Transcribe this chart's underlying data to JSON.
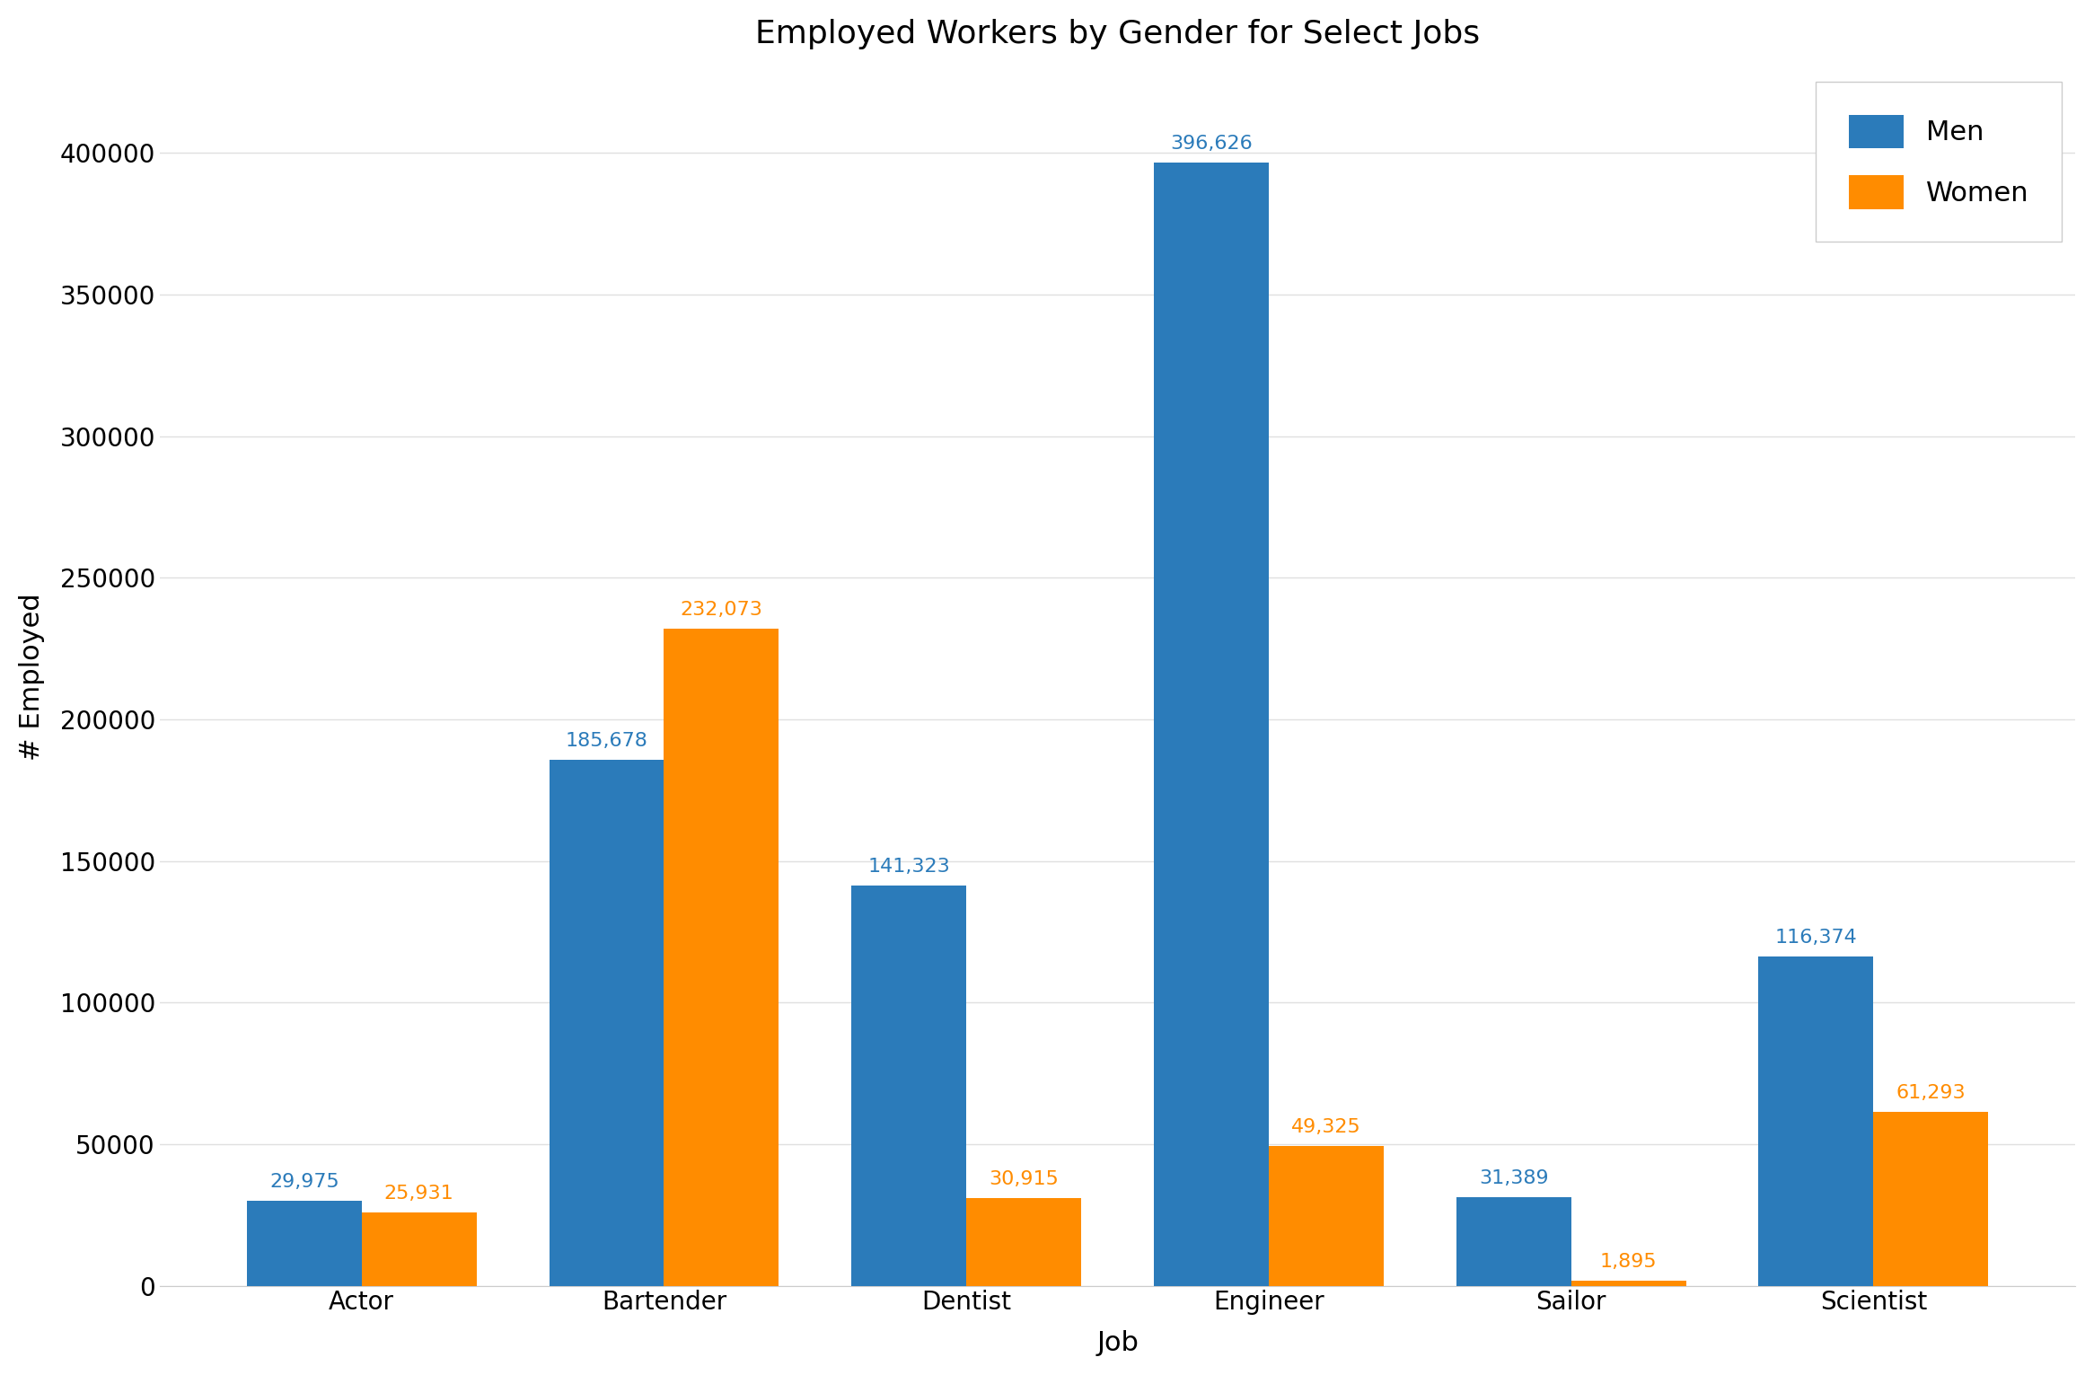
{
  "title": "Employed Workers by Gender for Select Jobs",
  "xlabel": "Job",
  "ylabel": "# Employed",
  "categories": [
    "Actor",
    "Bartender",
    "Dentist",
    "Engineer",
    "Sailor",
    "Scientist"
  ],
  "men_values": [
    29975,
    185678,
    141323,
    396626,
    31389,
    116374
  ],
  "women_values": [
    25931,
    232073,
    30915,
    49325,
    1895,
    61293
  ],
  "men_color": "#2b7bba",
  "women_color": "#ff8c00",
  "ylim": [
    0,
    430000
  ],
  "yticks": [
    0,
    50000,
    100000,
    150000,
    200000,
    250000,
    300000,
    350000,
    400000
  ],
  "legend_labels": [
    "Men",
    "Women"
  ],
  "bar_width": 0.38,
  "title_fontsize": 26,
  "axis_label_fontsize": 22,
  "tick_fontsize": 20,
  "annotation_fontsize": 16,
  "legend_fontsize": 22,
  "background_color": "#ffffff",
  "grid_color": "#e0e0e0"
}
